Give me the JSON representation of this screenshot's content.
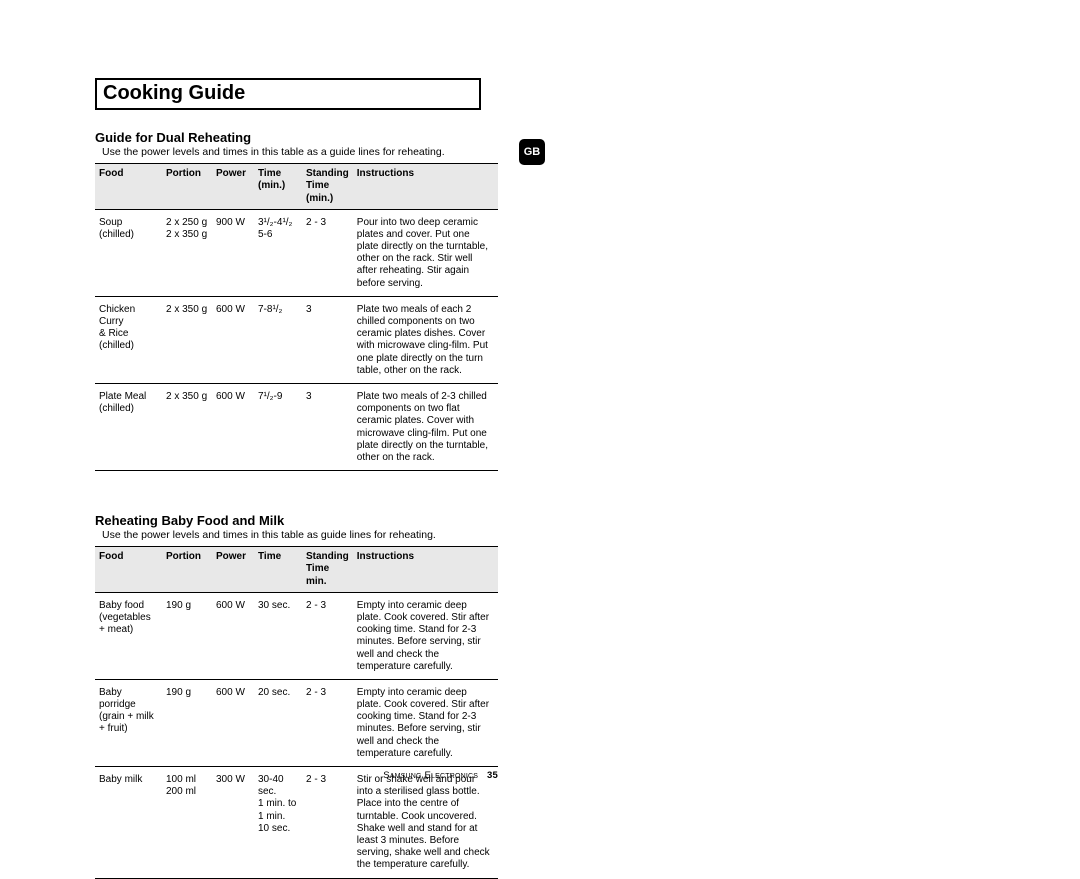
{
  "title": "Cooking Guide",
  "badge": "GB",
  "section1": {
    "heading": "Guide for Dual Reheating",
    "intro": "Use the power levels and times in this table as a guide lines for reheating.",
    "headers": {
      "c1": "Food",
      "c2": "Portion",
      "c3": "Power",
      "c4a": "Time",
      "c4b": "(min.)",
      "c5a": "Standing",
      "c5b": "Time (min.)",
      "c6": "Instructions"
    },
    "r1": {
      "food1": "Soup",
      "food2": "(chilled)",
      "portion1": "2 x 250 g",
      "portion2": "2 x 350 g",
      "power": "900 W",
      "time1": "3¹/₂-4¹/₂",
      "time2": "5-6",
      "stand": "2 - 3",
      "instr": "Pour into two deep ceramic plates and cover. Put one plate directly on the turntable, other on the rack. Stir well after reheating. Stir again before serving."
    },
    "r2": {
      "food1": "Chicken Curry",
      "food2": "& Rice",
      "food3": "(chilled)",
      "portion": "2 x 350 g",
      "power": "600 W",
      "time": "7-8¹/₂",
      "stand": "3",
      "instr": "Plate two meals of each 2 chilled components on two ceramic plates dishes. Cover with microwave cling-film. Put one plate directly on the turn table, other on the rack."
    },
    "r3": {
      "food1": "Plate Meal",
      "food2": "(chilled)",
      "portion": "2 x 350 g",
      "power": "600 W",
      "time": "7¹/₂-9",
      "stand": "3",
      "instr": "Plate two meals of 2-3 chilled components on two flat ceramic plates. Cover with microwave cling-film. Put one plate directly on the turntable, other on the rack."
    }
  },
  "section2": {
    "heading": "Reheating Baby Food and Milk",
    "intro": "Use the power levels and times in this table as guide lines for reheating.",
    "headers": {
      "c1": "Food",
      "c2": "Portion",
      "c3": "Power",
      "c4": "Time",
      "c5a": "Standing",
      "c5b": "Time min.",
      "c6": "Instructions"
    },
    "r1": {
      "food1": "Baby food",
      "food2": "(vegetables",
      "food3": " + meat)",
      "portion": "190 g",
      "power": "600 W",
      "time": "30 sec.",
      "stand": "2 - 3",
      "instr": "Empty into ceramic deep plate. Cook covered. Stir after cooking time. Stand for 2-3 minutes. Before serving, stir well and check the temperature carefully."
    },
    "r2": {
      "food1": "Baby porridge",
      "food2": "(grain + milk",
      "food3": " + fruit)",
      "portion": "190 g",
      "power": "600 W",
      "time": "20 sec.",
      "stand": "2 - 3",
      "instr": "Empty into ceramic deep plate. Cook covered. Stir after cooking time. Stand for 2-3 minutes. Before serving, stir well and check the temperature carefully."
    },
    "r3": {
      "food": "Baby milk",
      "portion1": "100 ml",
      "portion2": "200 ml",
      "power": "300 W",
      "time1": "30-40 sec.",
      "time2": "1 min. to",
      "time3": "1 min. 10 sec.",
      "stand": "2 - 3",
      "instr": "Stir or shake well and pour into a sterilised glass bottle. Place into the centre of turntable. Cook uncovered. Shake well and stand for at least 3 minutes. Before serving, shake well and check the temperature carefully."
    }
  },
  "footer": {
    "brand": "Samsung Electronics",
    "page": "35"
  }
}
